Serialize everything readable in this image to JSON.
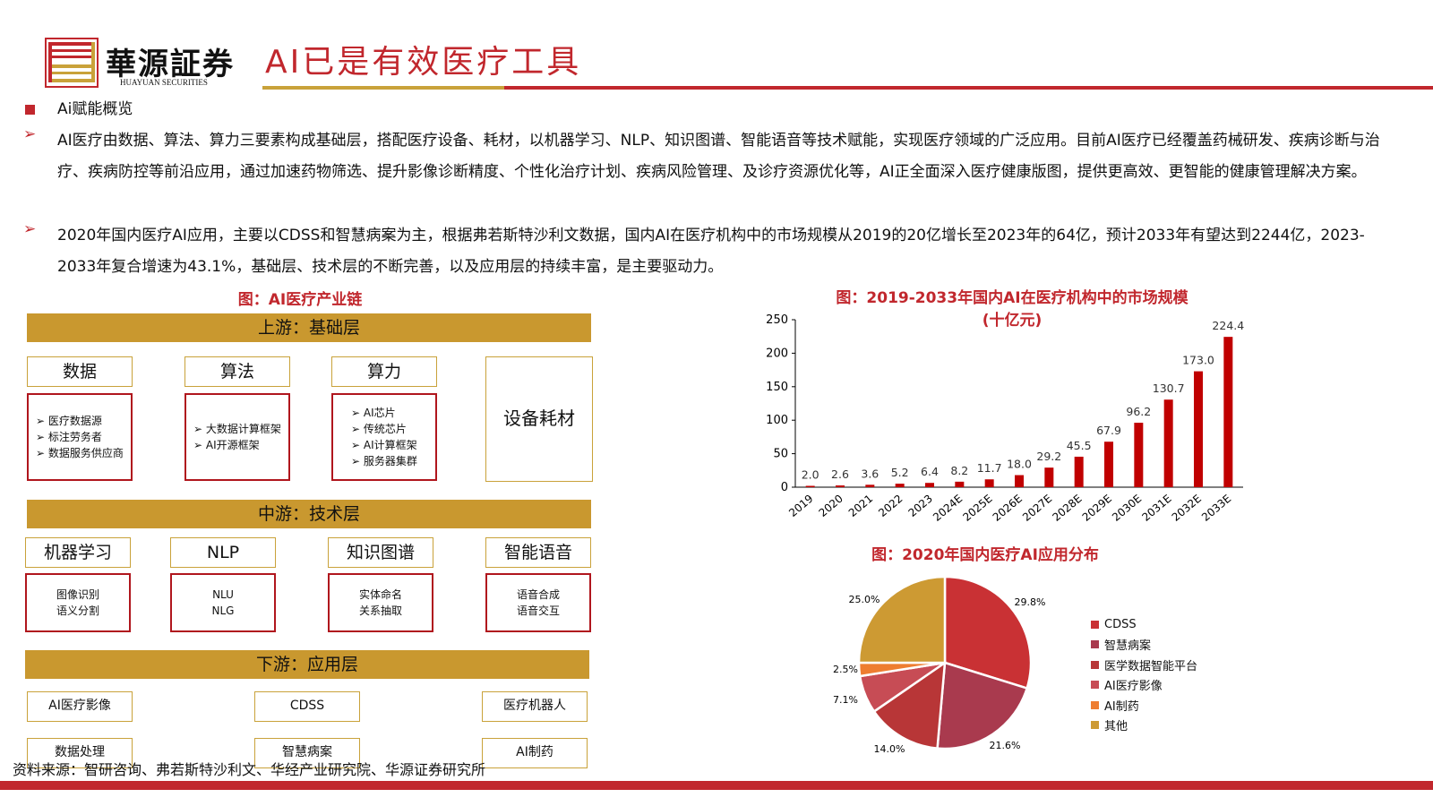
{
  "header": {
    "brand": "華源証券",
    "brand_en": "HUAYUAN SECURITIES",
    "title": "AI已是有效医疗工具"
  },
  "body": {
    "section": "Ai赋能概览",
    "para1": "AI医疗由数据、算法、算力三要素构成基础层，搭配医疗设备、耗材，以机器学习、NLP、知识图谱、智能语音等技术赋能，实现医疗领域的广泛应用。目前AI医疗已经覆盖药械研发、疾病诊断与治疗、疾病防控等前沿应用，通过加速药物筛选、提升影像诊断精度、个性化治疗计划、疾病风险管理、及诊疗资源优化等，AI正全面深入医疗健康版图，提供更高效、更智能的健康管理解决方案。",
    "para2": "2020年国内医疗AI应用，主要以CDSS和智慧病案为主，根据弗若斯特沙利文数据，国内AI在医疗机构中的市场规模从2019的20亿增长至2023年的64亿，预计2033年有望达到2244亿，2023-2033年复合增速为43.1%，基础层、技术层的不断完善，以及应用层的持续丰富，是主要驱动力。"
  },
  "diagram": {
    "caption": "图：AI医疗产业链",
    "upstream": "上游：基础层",
    "up_items": [
      {
        "title": "数据",
        "details": [
          "医疗数据源",
          "标注劳务者",
          "数据服务供应商"
        ]
      },
      {
        "title": "算法",
        "details": [
          "大数据计算框架",
          "AI开源框架"
        ]
      },
      {
        "title": "算力",
        "details": [
          "AI芯片",
          "传统芯片",
          "AI计算框架",
          "服务器集群"
        ]
      }
    ],
    "equipment": "设备耗材",
    "midstream": "中游：技术层",
    "mid_items": [
      {
        "title": "机器学习",
        "details": [
          "图像识别",
          "语义分割"
        ]
      },
      {
        "title": "NLP",
        "details": [
          "NLU",
          "NLG"
        ]
      },
      {
        "title": "知识图谱",
        "details": [
          "实体命名",
          "关系抽取"
        ]
      },
      {
        "title": "智能语音",
        "details": [
          "语音合成",
          "语音交互"
        ]
      }
    ],
    "downstream": "下游：应用层",
    "down_items": [
      "AI医疗影像",
      "CDSS",
      "医疗机器人",
      "数据处理",
      "智慧病案",
      "AI制药"
    ]
  },
  "chart_data": [
    {
      "type": "bar",
      "title": "图：2019-2033年国内AI在医疗机构中的市场规模",
      "subtitle": "(十亿元)",
      "categories": [
        "2019",
        "2020",
        "2021",
        "2022",
        "2023",
        "2024E",
        "2025E",
        "2026E",
        "2027E",
        "2028E",
        "2029E",
        "2030E",
        "2031E",
        "2032E",
        "2033E"
      ],
      "values": [
        2.0,
        2.6,
        3.6,
        5.2,
        6.4,
        8.2,
        11.7,
        18.0,
        29.2,
        45.5,
        67.9,
        96.2,
        130.7,
        173.0,
        224.4
      ],
      "value_labels": [
        "2.0",
        "2.6",
        "3.6",
        "5.2",
        "6.4",
        "8.2",
        "11.7",
        "18.0",
        "29.2",
        "45.5",
        "67.9",
        "96.2",
        "130.7",
        "173.0",
        "224.4"
      ],
      "ylim": [
        0,
        250
      ],
      "yticks": [
        "0",
        "50",
        "100",
        "150",
        "200",
        "250"
      ],
      "color": "#c00000",
      "grid": false
    },
    {
      "type": "pie",
      "title": "图：2020年国内医疗AI应用分布",
      "slices": [
        {
          "name": "CDSS",
          "value": 29.8,
          "label": "29.8%",
          "color": "#c93134"
        },
        {
          "name": "智慧病案",
          "value": 21.6,
          "label": "21.6%",
          "color": "#a93a4e"
        },
        {
          "name": "医学数据智能平台",
          "value": 14.0,
          "label": "14.0%",
          "color": "#b83637"
        },
        {
          "name": "AI医疗影像",
          "value": 7.1,
          "label": "7.1%",
          "color": "#c74c55"
        },
        {
          "name": "AI制药",
          "value": 2.5,
          "label": "2.5%",
          "color": "#ee7d31"
        },
        {
          "name": "其他",
          "value": 25.0,
          "label": "25.0%",
          "color": "#cd9a33"
        }
      ],
      "legend": "right"
    }
  ],
  "footer": {
    "source": "资料来源：智研咨询、弗若斯特沙利文、华经产业研究院、华源证券研究所"
  }
}
